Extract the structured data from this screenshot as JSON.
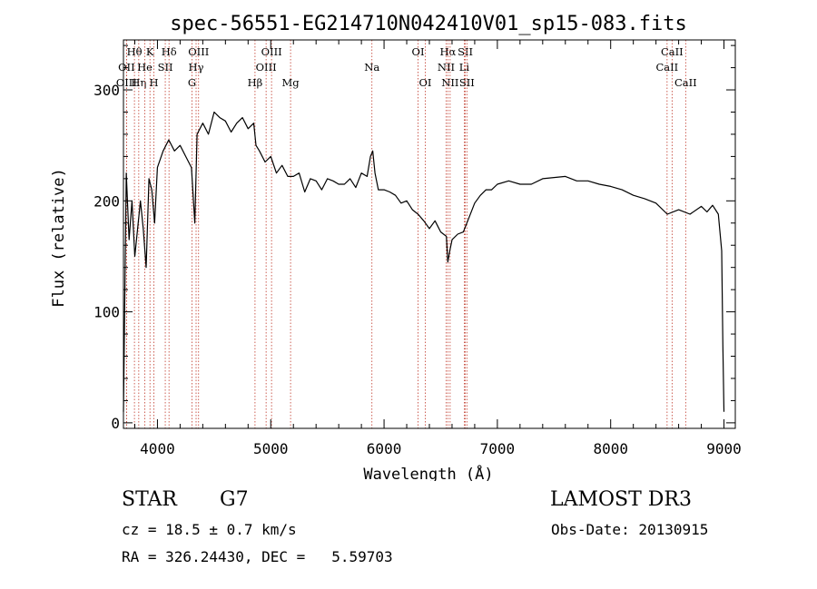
{
  "chart_data": {
    "type": "line",
    "title": "spec-56551-EG214710N042410V01_sp15-083.fits",
    "xlabel": "Wavelength (Å)",
    "ylabel": "Flux (relative)",
    "xlim": [
      3700,
      9100
    ],
    "ylim": [
      -5,
      345
    ],
    "xticks": [
      4000,
      5000,
      6000,
      7000,
      8000,
      9000
    ],
    "yticks": [
      0,
      100,
      200,
      300
    ],
    "grid": false,
    "series": [
      {
        "name": "",
        "x": [
          3700,
          3725,
          3750,
          3775,
          3800,
          3825,
          3850,
          3875,
          3900,
          3925,
          3950,
          3975,
          4000,
          4050,
          4100,
          4150,
          4200,
          4250,
          4300,
          4330,
          4350,
          4400,
          4450,
          4500,
          4550,
          4600,
          4650,
          4700,
          4750,
          4800,
          4850,
          4870,
          4900,
          4950,
          5000,
          5050,
          5100,
          5150,
          5200,
          5250,
          5300,
          5350,
          5400,
          5450,
          5500,
          5550,
          5600,
          5650,
          5700,
          5750,
          5800,
          5850,
          5880,
          5900,
          5920,
          5950,
          6000,
          6050,
          6100,
          6150,
          6200,
          6250,
          6300,
          6350,
          6400,
          6450,
          6500,
          6550,
          6563,
          6580,
          6600,
          6650,
          6700,
          6750,
          6800,
          6850,
          6900,
          6950,
          7000,
          7100,
          7200,
          7300,
          7400,
          7500,
          7600,
          7700,
          7800,
          7900,
          8000,
          8100,
          8200,
          8300,
          8400,
          8500,
          8600,
          8700,
          8800,
          8850,
          8900,
          8950,
          8980,
          8990,
          9000
        ],
        "y": [
          10,
          225,
          165,
          200,
          150,
          175,
          200,
          175,
          140,
          220,
          210,
          180,
          230,
          245,
          255,
          245,
          250,
          240,
          230,
          180,
          260,
          270,
          260,
          280,
          275,
          272,
          262,
          270,
          275,
          265,
          270,
          250,
          245,
          235,
          240,
          225,
          232,
          222,
          222,
          225,
          208,
          220,
          218,
          210,
          220,
          218,
          215,
          215,
          220,
          212,
          225,
          222,
          240,
          245,
          225,
          210,
          210,
          208,
          205,
          198,
          200,
          192,
          188,
          182,
          175,
          182,
          172,
          168,
          145,
          155,
          165,
          170,
          172,
          185,
          198,
          205,
          210,
          210,
          215,
          218,
          215,
          215,
          220,
          221,
          222,
          218,
          218,
          215,
          213,
          210,
          205,
          202,
          198,
          188,
          192,
          188,
          195,
          190,
          196,
          188,
          155,
          70,
          10
        ]
      }
    ],
    "spectral_lines": [
      {
        "label": "Hθ",
        "x": 3797,
        "row": 0
      },
      {
        "label": "OII",
        "x": 3727,
        "row": 1
      },
      {
        "label": "OIII",
        "x": 3727,
        "row": 2
      },
      {
        "label": "Hη",
        "x": 3835,
        "row": 2
      },
      {
        "label": "K",
        "x": 3934,
        "row": 0
      },
      {
        "label": "He",
        "x": 3889,
        "row": 1
      },
      {
        "label": "H",
        "x": 3969,
        "row": 2
      },
      {
        "label": "Hδ",
        "x": 4102,
        "row": 0
      },
      {
        "label": "SII",
        "x": 4069,
        "row": 1
      },
      {
        "label": "OIII",
        "x": 4363,
        "row": 0
      },
      {
        "label": "Hγ",
        "x": 4341,
        "row": 1
      },
      {
        "label": "G",
        "x": 4305,
        "row": 2
      },
      {
        "label": "OIII",
        "x": 5007,
        "row": 0
      },
      {
        "label": "OIII",
        "x": 4959,
        "row": 1
      },
      {
        "label": "Hβ",
        "x": 4861,
        "row": 2
      },
      {
        "label": "Mg",
        "x": 5175,
        "row": 2
      },
      {
        "label": "Na",
        "x": 5893,
        "row": 1
      },
      {
        "label": "OI",
        "x": 6300,
        "row": 0
      },
      {
        "label": "OI",
        "x": 6364,
        "row": 2
      },
      {
        "label": "Hα",
        "x": 6563,
        "row": 0
      },
      {
        "label": "SII",
        "x": 6717,
        "row": 0
      },
      {
        "label": "NII",
        "x": 6548,
        "row": 1
      },
      {
        "label": "Li",
        "x": 6708,
        "row": 1
      },
      {
        "label": "NII",
        "x": 6583,
        "row": 2
      },
      {
        "label": "SII",
        "x": 6731,
        "row": 2
      },
      {
        "label": "CaII",
        "x": 8542,
        "row": 0
      },
      {
        "label": "CaII",
        "x": 8498,
        "row": 1
      },
      {
        "label": "CaII",
        "x": 8662,
        "row": 2
      }
    ]
  },
  "info": {
    "class": "STAR",
    "subclass": "G7",
    "survey": "LAMOST DR3",
    "cz": "cz = 18.5 ± 0.7 km/s",
    "obs_date": "Obs-Date: 20130915",
    "coords": "RA = 326.24430, DEC =   5.59703"
  },
  "colors": {
    "line_marker": "#c0392b",
    "spectrum": "#000000",
    "background": "#ffffff"
  }
}
